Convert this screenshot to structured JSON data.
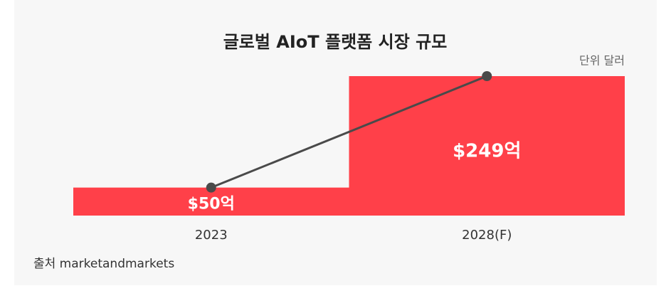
{
  "chart_data": {
    "type": "bar",
    "title": "글로벌 AIoT 플랫폼 시장 규모",
    "unit_note": "단위 달러",
    "source": "출처 marketandmarkets",
    "categories": [
      "2023",
      "2028(F)"
    ],
    "values": [
      50,
      249
    ],
    "value_labels": [
      "$50억",
      "$249억"
    ],
    "color": "#ff4049",
    "line_color": "#4a4a4a"
  }
}
